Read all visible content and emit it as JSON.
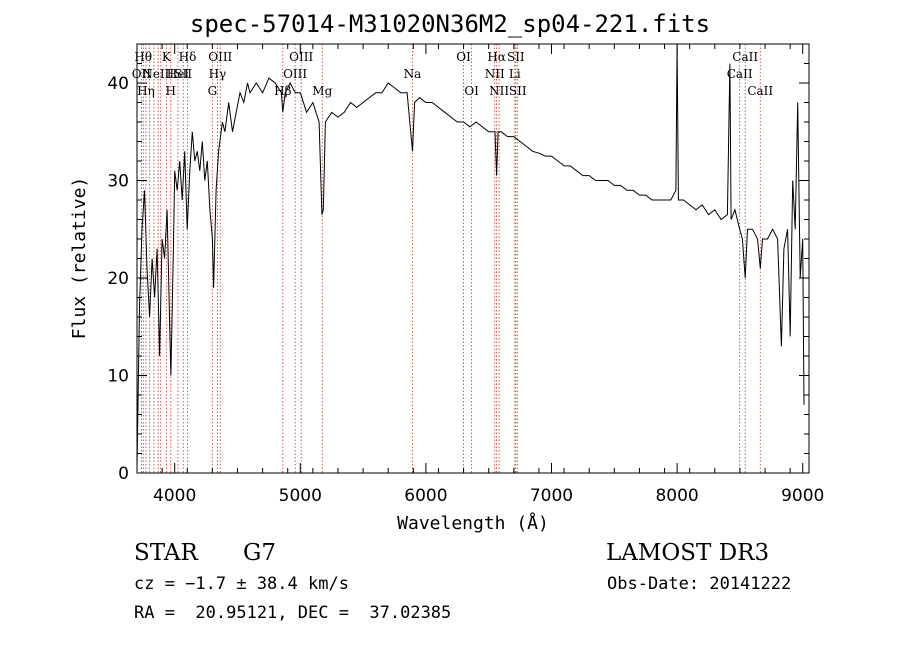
{
  "chart_data": {
    "type": "line",
    "title": "spec-57014-M31020N36M2_sp04-221.fits",
    "xlabel": "Wavelength (Å)",
    "ylabel": "Flux (relative)",
    "xlim": [
      3700,
      9050
    ],
    "ylim": [
      0,
      44
    ],
    "xticks": [
      4000,
      5000,
      6000,
      7000,
      8000,
      9000
    ],
    "yticks": [
      0,
      10,
      20,
      30,
      40
    ],
    "grid": false,
    "series": [
      {
        "points": [
          [
            3700,
            0.5
          ],
          [
            3720,
            17
          ],
          [
            3740,
            25
          ],
          [
            3760,
            29
          ],
          [
            3780,
            21
          ],
          [
            3800,
            16
          ],
          [
            3820,
            22
          ],
          [
            3840,
            18
          ],
          [
            3860,
            23
          ],
          [
            3880,
            12
          ],
          [
            3900,
            24
          ],
          [
            3920,
            22
          ],
          [
            3940,
            27
          ],
          [
            3960,
            15
          ],
          [
            3970,
            10
          ],
          [
            3990,
            23
          ],
          [
            4000,
            31
          ],
          [
            4020,
            29
          ],
          [
            4040,
            32
          ],
          [
            4060,
            28
          ],
          [
            4080,
            33
          ],
          [
            4100,
            25
          ],
          [
            4120,
            31
          ],
          [
            4140,
            35
          ],
          [
            4160,
            32
          ],
          [
            4180,
            33
          ],
          [
            4200,
            31
          ],
          [
            4220,
            34
          ],
          [
            4240,
            30
          ],
          [
            4260,
            32
          ],
          [
            4280,
            27
          ],
          [
            4300,
            24
          ],
          [
            4310,
            19
          ],
          [
            4330,
            29
          ],
          [
            4350,
            33
          ],
          [
            4380,
            36
          ],
          [
            4400,
            35
          ],
          [
            4430,
            38
          ],
          [
            4460,
            35
          ],
          [
            4490,
            37
          ],
          [
            4520,
            39
          ],
          [
            4550,
            38
          ],
          [
            4580,
            40
          ],
          [
            4600,
            39
          ],
          [
            4650,
            40
          ],
          [
            4700,
            39
          ],
          [
            4750,
            40.5
          ],
          [
            4800,
            40
          ],
          [
            4850,
            39
          ],
          [
            4861,
            37
          ],
          [
            4880,
            39
          ],
          [
            4920,
            40
          ],
          [
            4960,
            39
          ],
          [
            5000,
            39
          ],
          [
            5050,
            37
          ],
          [
            5100,
            38
          ],
          [
            5150,
            36
          ],
          [
            5172,
            26.5
          ],
          [
            5183,
            27
          ],
          [
            5200,
            36
          ],
          [
            5250,
            37
          ],
          [
            5300,
            36.5
          ],
          [
            5350,
            37
          ],
          [
            5400,
            38
          ],
          [
            5450,
            37.5
          ],
          [
            5500,
            38
          ],
          [
            5550,
            38.5
          ],
          [
            5600,
            39
          ],
          [
            5650,
            39
          ],
          [
            5700,
            40
          ],
          [
            5750,
            39.5
          ],
          [
            5800,
            39
          ],
          [
            5850,
            39
          ],
          [
            5893,
            33
          ],
          [
            5910,
            38
          ],
          [
            5950,
            38.5
          ],
          [
            6000,
            38
          ],
          [
            6050,
            38
          ],
          [
            6100,
            37.5
          ],
          [
            6150,
            37
          ],
          [
            6200,
            36.5
          ],
          [
            6250,
            36
          ],
          [
            6300,
            36
          ],
          [
            6350,
            35.5
          ],
          [
            6400,
            36
          ],
          [
            6450,
            35.5
          ],
          [
            6500,
            35
          ],
          [
            6550,
            35
          ],
          [
            6563,
            30.5
          ],
          [
            6575,
            35
          ],
          [
            6600,
            35
          ],
          [
            6650,
            34.5
          ],
          [
            6700,
            34.5
          ],
          [
            6750,
            34
          ],
          [
            6800,
            33.5
          ],
          [
            6850,
            33
          ],
          [
            6900,
            32.8
          ],
          [
            6950,
            32.5
          ],
          [
            7000,
            32.5
          ],
          [
            7050,
            32
          ],
          [
            7100,
            31.5
          ],
          [
            7150,
            31.5
          ],
          [
            7200,
            31
          ],
          [
            7250,
            30.5
          ],
          [
            7300,
            30.5
          ],
          [
            7350,
            30
          ],
          [
            7400,
            30
          ],
          [
            7450,
            30
          ],
          [
            7500,
            29.5
          ],
          [
            7550,
            29.5
          ],
          [
            7600,
            29
          ],
          [
            7650,
            29
          ],
          [
            7700,
            28.5
          ],
          [
            7750,
            28.5
          ],
          [
            7800,
            28
          ],
          [
            7850,
            28
          ],
          [
            7900,
            28
          ],
          [
            7950,
            28
          ],
          [
            7990,
            29
          ],
          [
            8000,
            44
          ],
          [
            8010,
            28
          ],
          [
            8050,
            28
          ],
          [
            8100,
            27.5
          ],
          [
            8150,
            27
          ],
          [
            8200,
            27.5
          ],
          [
            8250,
            26.5
          ],
          [
            8300,
            27
          ],
          [
            8350,
            26
          ],
          [
            8400,
            26.5
          ],
          [
            8420,
            42
          ],
          [
            8430,
            26
          ],
          [
            8460,
            27
          ],
          [
            8498,
            25
          ],
          [
            8520,
            24
          ],
          [
            8542,
            20
          ],
          [
            8560,
            25
          ],
          [
            8600,
            25
          ],
          [
            8640,
            24
          ],
          [
            8662,
            21
          ],
          [
            8680,
            24
          ],
          [
            8720,
            24
          ],
          [
            8760,
            25
          ],
          [
            8800,
            24
          ],
          [
            8830,
            13
          ],
          [
            8850,
            23
          ],
          [
            8880,
            25
          ],
          [
            8900,
            14
          ],
          [
            8920,
            30
          ],
          [
            8940,
            25
          ],
          [
            8960,
            38
          ],
          [
            8980,
            20
          ],
          [
            9000,
            24
          ],
          [
            9010,
            7
          ]
        ]
      }
    ],
    "lines": [
      {
        "x": 3735,
        "label": "OII",
        "row": 1
      },
      {
        "x": 3750,
        "label": "Hθ",
        "row": 0
      },
      {
        "x": 3771,
        "label": "Hη",
        "row": 2
      },
      {
        "x": 3798,
        "label": "",
        "row": -1
      },
      {
        "x": 3835,
        "label": "",
        "row": -1
      },
      {
        "x": 3869,
        "label": "NeIII",
        "row": 1
      },
      {
        "x": 3889,
        "label": "",
        "row": -1
      },
      {
        "x": 3934,
        "label": "K",
        "row": 0
      },
      {
        "x": 3969,
        "label": "H",
        "row": 2
      },
      {
        "x": 4026,
        "label": "HeI",
        "row": 1
      },
      {
        "x": 4068,
        "label": "SII",
        "row": 1
      },
      {
        "x": 4102,
        "label": "Hδ",
        "row": 0
      },
      {
        "x": 4300,
        "label": "G",
        "row": 2
      },
      {
        "x": 4340,
        "label": "Hγ",
        "row": 1
      },
      {
        "x": 4363,
        "label": "OIII",
        "row": 0
      },
      {
        "x": 4861,
        "label": "Hβ",
        "row": 2
      },
      {
        "x": 4959,
        "label": "OIII",
        "row": 1
      },
      {
        "x": 5007,
        "label": "OIII",
        "row": 0
      },
      {
        "x": 5175,
        "label": "Mg",
        "row": 2
      },
      {
        "x": 5893,
        "label": "Na",
        "row": 1
      },
      {
        "x": 6300,
        "label": "OI",
        "row": 0
      },
      {
        "x": 6364,
        "label": "OI",
        "row": 2
      },
      {
        "x": 6548,
        "label": "NII",
        "row": 1
      },
      {
        "x": 6563,
        "label": "Hα",
        "row": 0
      },
      {
        "x": 6583,
        "label": "NII",
        "row": 2
      },
      {
        "x": 6708,
        "label": "Li",
        "row": 1
      },
      {
        "x": 6716,
        "label": "SII",
        "row": 0
      },
      {
        "x": 6731,
        "label": "SII",
        "row": 2
      },
      {
        "x": 8498,
        "label": "CaII",
        "row": 1
      },
      {
        "x": 8542,
        "label": "CaII",
        "row": 0
      },
      {
        "x": 8662,
        "label": "CaII",
        "row": 2
      }
    ]
  },
  "info": {
    "object_class": "STAR",
    "subclass": "G7",
    "survey": "LAMOST DR3",
    "redshift": "cz = −1.7 ± 38.4 km/s",
    "obs_date": "Obs-Date: 20141222",
    "coords": "RA =  20.95121, DEC =  37.02385"
  }
}
